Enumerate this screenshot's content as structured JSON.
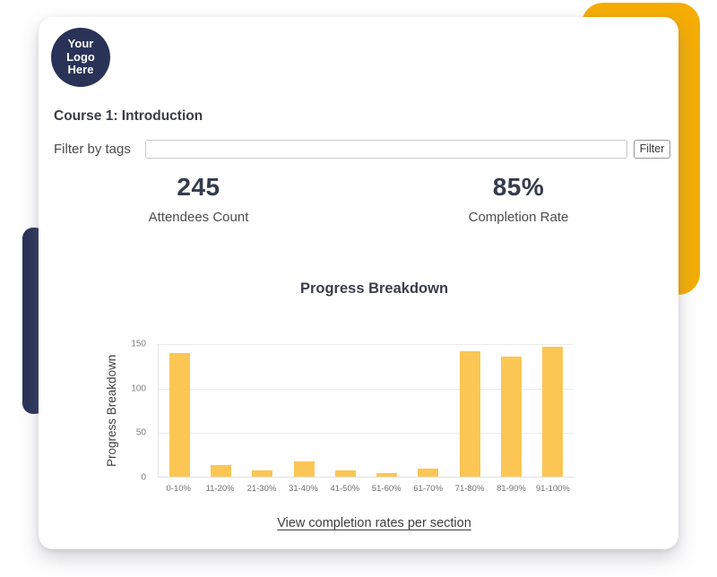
{
  "logo": {
    "line1": "Your",
    "line2": "Logo",
    "line3": "Here"
  },
  "header": {
    "course_title": "Course 1: Introduction"
  },
  "filter": {
    "label": "Filter by tags",
    "input_value": "",
    "button_label": "Filter"
  },
  "stats": [
    {
      "value": "245",
      "label": "Attendees Count"
    },
    {
      "value": "85%",
      "label": "Completion Rate"
    }
  ],
  "chart_data": {
    "type": "bar",
    "title": "Progress Breakdown",
    "categories": [
      "0-10%",
      "11-20%",
      "21-30%",
      "31-40%",
      "41-50%",
      "51-60%",
      "61-70%",
      "71-80%",
      "81-90%",
      "91-100%"
    ],
    "values": [
      139,
      13,
      7,
      17,
      7,
      4,
      9,
      141,
      135,
      146
    ],
    "xlabel": "",
    "ylabel": "Progress Breakdown",
    "ylim": [
      0,
      150
    ],
    "yticks": [
      0,
      50,
      100,
      150
    ],
    "grid": true,
    "legend": false,
    "bar_color": "#FBC654"
  },
  "footer": {
    "link_label": "View completion rates per section"
  },
  "colors": {
    "accent_yellow": "#F5AD05",
    "navy": "#293357",
    "bar_yellow": "#FBC654",
    "text_dark": "#343B4D",
    "text_gray": "#4C4C4C"
  }
}
